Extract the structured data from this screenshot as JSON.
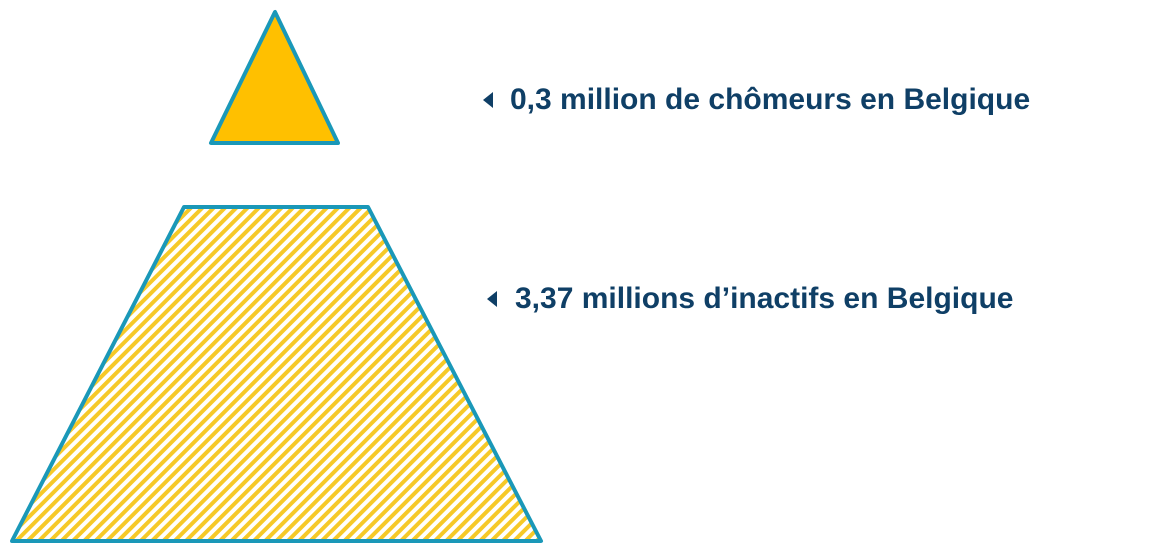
{
  "items": [
    {
      "label": "0,3 million de chômeurs en Belgique"
    },
    {
      "label": "3,37 millions d’inactifs en Belgique"
    }
  ]
}
